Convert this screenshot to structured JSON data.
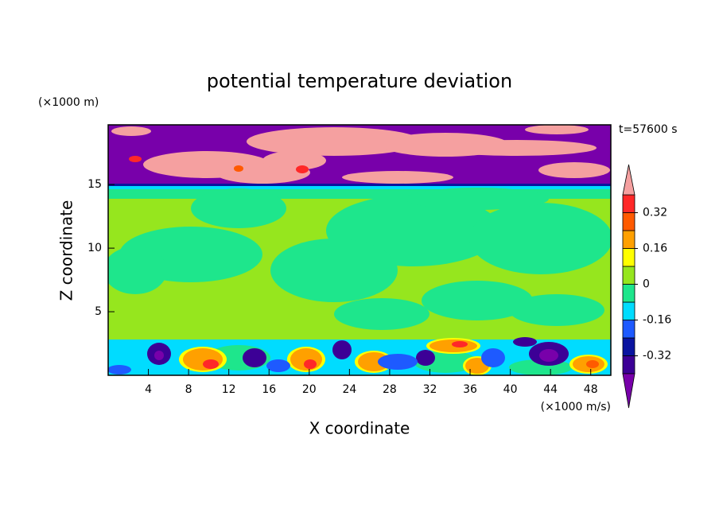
{
  "chart_data": {
    "type": "contour",
    "title": "potential temperature deviation",
    "x_label": "X coordinate",
    "y_label": "Z coordinate",
    "x_unit": "(×1000 m/s)",
    "y_unit": "(×1000 m)",
    "annotation": "t=57600 s",
    "xlim": [
      0,
      50
    ],
    "xticks": [
      4,
      8,
      12,
      16,
      20,
      24,
      28,
      32,
      36,
      40,
      44,
      48
    ],
    "ylim": [
      0,
      19.7
    ],
    "yticks": [
      5,
      10,
      15
    ],
    "clim": [
      -0.4,
      0.4
    ],
    "cticks": [
      -0.32,
      -0.16,
      0,
      0.16,
      0.32
    ],
    "colors": [
      "#3c0096",
      "#0a14a0",
      "#1e5aff",
      "#00dcff",
      "#1ee68c",
      "#96e61e",
      "#ffff00",
      "#ffa000",
      "#ff5a00",
      "#ff2828"
    ],
    "under_color": "#7800aa",
    "over_color": "#f5a0a0"
  }
}
